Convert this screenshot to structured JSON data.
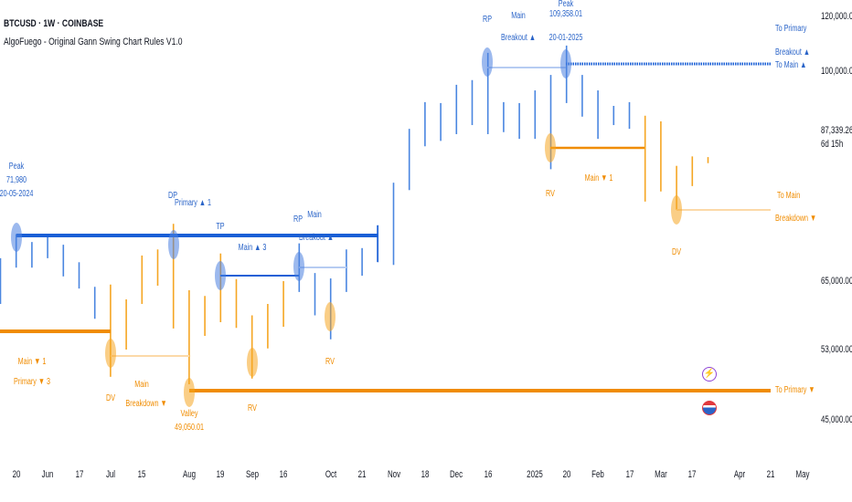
{
  "header": {
    "symbol": "BTCUSD · 1W · COINBASE",
    "indicator": "AlgoFuego - Original Gann Swing Chart Rules V1.0"
  },
  "colors": {
    "up_bar": "#4a86e0",
    "down_bar": "#f5a623",
    "main_blue": "#1a5fd6",
    "main_orange": "#f08c00"
  },
  "chart_data": {
    "type": "bar",
    "price_axis": {
      "labels": [
        "120,000.00",
        "100,000.00",
        "87,339.26",
        "65,000.00",
        "53,000.00",
        "45,000.00"
      ],
      "values": [
        120000,
        100000,
        87339.26,
        65000,
        53000,
        45000
      ],
      "countdown": "6d 15h"
    },
    "x_axis": {
      "ticks": [
        {
          "label": "20",
          "date": "2024-05-20"
        },
        {
          "label": "Jun",
          "date": "2024-06-03"
        },
        {
          "label": "17",
          "date": "2024-06-17"
        },
        {
          "label": "Jul",
          "date": "2024-07-01"
        },
        {
          "label": "15",
          "date": "2024-07-15"
        },
        {
          "label": "Aug",
          "date": "2024-08-05"
        },
        {
          "label": "19",
          "date": "2024-08-19"
        },
        {
          "label": "Sep",
          "date": "2024-09-02"
        },
        {
          "label": "16",
          "date": "2024-09-16"
        },
        {
          "label": "Oct",
          "date": "2024-10-07"
        },
        {
          "label": "21",
          "date": "2024-10-21"
        },
        {
          "label": "Nov",
          "date": "2024-11-04"
        },
        {
          "label": "18",
          "date": "2024-11-18"
        },
        {
          "label": "Dec",
          "date": "2024-12-02"
        },
        {
          "label": "16",
          "date": "2024-12-16"
        },
        {
          "label": "2025",
          "date": "2025-01-06"
        },
        {
          "label": "20",
          "date": "2025-01-20"
        },
        {
          "label": "Feb",
          "date": "2025-02-03"
        },
        {
          "label": "17",
          "date": "2025-02-17"
        },
        {
          "label": "Mar",
          "date": "2025-03-03"
        },
        {
          "label": "17",
          "date": "2025-03-17"
        },
        {
          "label": "Apr",
          "date": "2025-04-07"
        },
        {
          "label": "21",
          "date": "2025-04-21"
        },
        {
          "label": "May",
          "date": "2025-05-05"
        }
      ]
    },
    "bars": [
      {
        "date": "2024-05-13",
        "high": 68400,
        "low": 61000,
        "trend": "up"
      },
      {
        "date": "2024-05-20",
        "high": 71980,
        "low": 67000,
        "trend": "up"
      },
      {
        "date": "2024-05-27",
        "high": 70800,
        "low": 67000,
        "trend": "up"
      },
      {
        "date": "2024-06-03",
        "high": 71800,
        "low": 68400,
        "trend": "up"
      },
      {
        "date": "2024-06-10",
        "high": 70400,
        "low": 65700,
        "trend": "up"
      },
      {
        "date": "2024-06-17",
        "high": 67800,
        "low": 63700,
        "trend": "up"
      },
      {
        "date": "2024-06-24",
        "high": 64000,
        "low": 58400,
        "trend": "up"
      },
      {
        "date": "2024-07-01",
        "high": 64400,
        "low": 49900,
        "trend": "down"
      },
      {
        "date": "2024-07-08",
        "high": 61800,
        "low": 53000,
        "trend": "down"
      },
      {
        "date": "2024-07-15",
        "high": 68800,
        "low": 61000,
        "trend": "down"
      },
      {
        "date": "2024-07-22",
        "high": 69700,
        "low": 64200,
        "trend": "down"
      },
      {
        "date": "2024-07-29",
        "high": 73500,
        "low": 56700,
        "trend": "down"
      },
      {
        "date": "2024-08-05",
        "high": 63400,
        "low": 49050,
        "trend": "down"
      },
      {
        "date": "2024-08-12",
        "high": 62400,
        "low": 55400,
        "trend": "down"
      },
      {
        "date": "2024-08-19",
        "high": 69100,
        "low": 57800,
        "trend": "down"
      },
      {
        "date": "2024-08-26",
        "high": 65300,
        "low": 56800,
        "trend": "down"
      },
      {
        "date": "2024-09-02",
        "high": 59000,
        "low": 49700,
        "trend": "down"
      },
      {
        "date": "2024-09-09",
        "high": 61000,
        "low": 53200,
        "trend": "down"
      },
      {
        "date": "2024-09-16",
        "high": 65000,
        "low": 57000,
        "trend": "down"
      },
      {
        "date": "2024-09-23",
        "high": 70600,
        "low": 63100,
        "trend": "up"
      },
      {
        "date": "2024-09-30",
        "high": 66200,
        "low": 59000,
        "trend": "up"
      },
      {
        "date": "2024-10-07",
        "high": 65400,
        "low": 54800,
        "trend": "up"
      },
      {
        "date": "2024-10-14",
        "high": 69700,
        "low": 63100,
        "trend": "up"
      },
      {
        "date": "2024-10-21",
        "high": 69900,
        "low": 65800,
        "trend": "up"
      },
      {
        "date": "2024-10-28",
        "high": 73300,
        "low": 67800,
        "trend": "up"
      },
      {
        "date": "2024-11-04",
        "high": 79600,
        "low": 67400,
        "trend": "up"
      },
      {
        "date": "2024-11-11",
        "high": 87700,
        "low": 78500,
        "trend": "up"
      },
      {
        "date": "2024-11-18",
        "high": 93400,
        "low": 85000,
        "trend": "up"
      },
      {
        "date": "2024-11-25",
        "high": 93200,
        "low": 85800,
        "trend": "up"
      },
      {
        "date": "2024-12-02",
        "high": 97100,
        "low": 86800,
        "trend": "up"
      },
      {
        "date": "2024-12-09",
        "high": 98100,
        "low": 88500,
        "trend": "up"
      },
      {
        "date": "2024-12-16",
        "high": 106700,
        "low": 86800,
        "trend": "up"
      },
      {
        "date": "2024-12-23",
        "high": 93400,
        "low": 87100,
        "trend": "up"
      },
      {
        "date": "2024-12-30",
        "high": 93200,
        "low": 86100,
        "trend": "up"
      },
      {
        "date": "2025-01-06",
        "high": 95900,
        "low": 86100,
        "trend": "up"
      },
      {
        "date": "2025-01-13",
        "high": 99200,
        "low": 81600,
        "trend": "up"
      },
      {
        "date": "2025-01-20",
        "high": 109358,
        "low": 93200,
        "trend": "up"
      },
      {
        "date": "2025-01-27",
        "high": 99200,
        "low": 90300,
        "trend": "up"
      },
      {
        "date": "2025-02-03",
        "high": 95900,
        "low": 86100,
        "trend": "up"
      },
      {
        "date": "2025-02-10",
        "high": 92600,
        "low": 88500,
        "trend": "up"
      },
      {
        "date": "2025-02-17",
        "high": 93400,
        "low": 87700,
        "trend": "up"
      },
      {
        "date": "2025-02-24",
        "high": 90500,
        "low": 76800,
        "trend": "down"
      },
      {
        "date": "2025-03-03",
        "high": 89300,
        "low": 78300,
        "trend": "down"
      },
      {
        "date": "2025-03-10",
        "high": 82100,
        "low": 75600,
        "trend": "down"
      },
      {
        "date": "2025-03-17",
        "high": 83500,
        "low": 79100,
        "trend": "down"
      },
      {
        "date": "2025-03-24",
        "high": 83400,
        "low": 82500,
        "trend": "down"
      }
    ],
    "annotations": {
      "peak1": {
        "title": "Peak",
        "price": "71,980",
        "date": "20-05-2024"
      },
      "dp": "DP",
      "primary_up1": "Primary ▲ 1",
      "tp": "TP",
      "main_up3": "Main ▲ 3",
      "rp1": "RP",
      "main1": "Main",
      "breakout1": "Breakout ▲",
      "rp2": "RP",
      "main2": "Main",
      "breakout2": "Breakout ▲",
      "peak2": {
        "title": "Peak",
        "price": "109,358.01",
        "date": "20-01-2025"
      },
      "to_primary_up": "To Primary",
      "to_primary_breakout": "Breakout ▲",
      "to_main_up": "To Main ▲",
      "main_down1": "Main ▼ 1",
      "primary_down3": "Primary ▼ 3",
      "dv1": "DV",
      "main3": "Main",
      "breakdown1": "Breakdown ▼",
      "valley": {
        "title": "Valley",
        "price": "49,050.01"
      },
      "rv1": "RV",
      "rv2": "RV",
      "rv3": "RV",
      "main_down1b": "Main ▼ 1",
      "dv2": "DV",
      "to_main": "To Main",
      "to_main_breakdown": "Breakdown ▼",
      "to_primary_down": "To Primary ▼"
    }
  },
  "icons": {
    "event1": "lightning-icon",
    "event2": "us-flag-icon"
  }
}
